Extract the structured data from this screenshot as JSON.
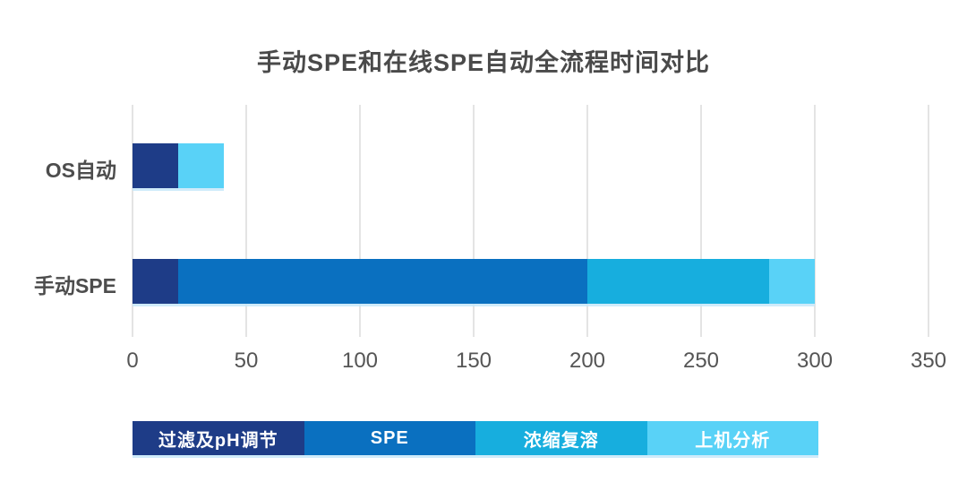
{
  "title": "手动SPE和在线SPE自动全流程时间对比",
  "chart_data": {
    "type": "bar",
    "orientation": "horizontal",
    "title": "手动SPE和在线SPE自动全流程时间对比",
    "categories": [
      "OS自动",
      "手动SPE"
    ],
    "series": [
      {
        "name": "过滤及pH调节",
        "color": "#1e3c87",
        "values": [
          20,
          20
        ]
      },
      {
        "name": "SPE",
        "color": "#0a70c0",
        "values": [
          0,
          180
        ]
      },
      {
        "name": "浓缩复溶",
        "color": "#17aede",
        "values": [
          0,
          80
        ]
      },
      {
        "name": "上机分析",
        "color": "#59d2f7",
        "values": [
          20,
          20
        ]
      }
    ],
    "totals": [
      40,
      300
    ],
    "x_ticks": [
      0,
      50,
      100,
      150,
      200,
      250,
      300,
      350
    ],
    "xlim": [
      0,
      350
    ],
    "xlabel": "",
    "ylabel": "",
    "grid": true,
    "gridline_color": "#e4e4e4",
    "legend_position": "bottom"
  }
}
